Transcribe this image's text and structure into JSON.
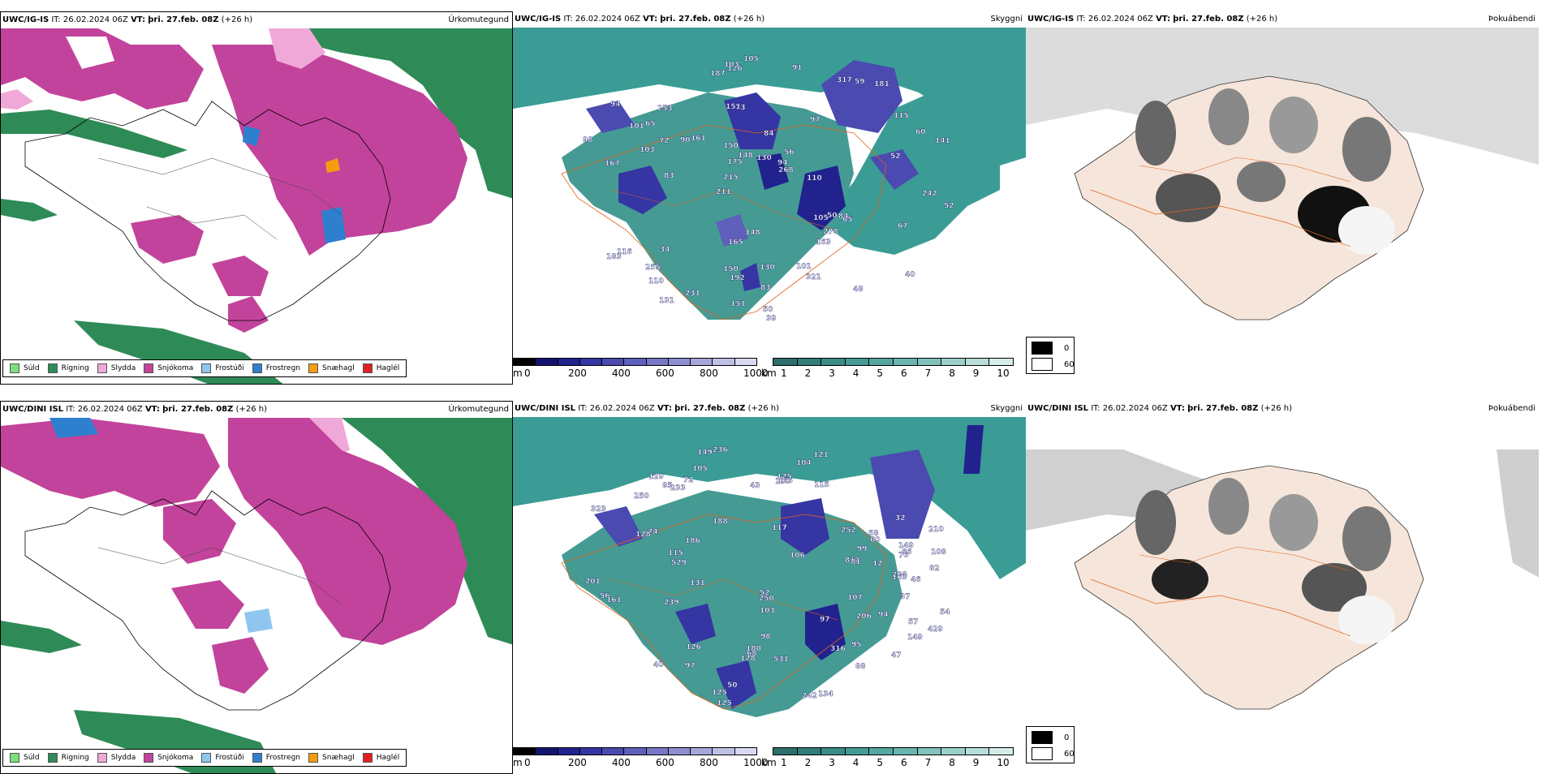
{
  "colors": {
    "sudd": "#7be07b",
    "rigning": "#2e8b57",
    "slydda": "#f0a8d8",
    "snjokoma": "#c2439b",
    "frostudi": "#8ec6f0",
    "frostregn": "#2f7fcf",
    "snaehagl": "#f39c12",
    "haglel": "#e02020",
    "sea_teal": "#3a9c95",
    "land_bg": "#f6e5da",
    "roads": "#e0641b"
  },
  "rows": [
    {
      "model": "UWC/IG-IS",
      "it_label": "IT:",
      "it_value": "26.02.2024 06Z",
      "vt_label": "VT:",
      "vt_value": "þri. 27.feb. 08Z",
      "lead": "(+26 h)"
    },
    {
      "model": "UWC/DINI ISL",
      "it_label": "IT:",
      "it_value": "26.02.2024 06Z",
      "vt_label": "VT:",
      "vt_value": "þri. 27.feb. 08Z",
      "lead": "(+26 h)"
    }
  ],
  "panel_titles": {
    "precip": "Úrkomutegund",
    "cloud": "Skyggni",
    "fog": "Þokuábendi"
  },
  "precip_legend": [
    {
      "label": "Súld",
      "color": "#7be07b"
    },
    {
      "label": "Rigning",
      "color": "#2e8b57"
    },
    {
      "label": "Slydda",
      "color": "#f0a8d8"
    },
    {
      "label": "Snjókoma",
      "color": "#c2439b"
    },
    {
      "label": "Frostúði",
      "color": "#8ec6f0"
    },
    {
      "label": "Frostregn",
      "color": "#2f7fcf"
    },
    {
      "label": "Snæhagl",
      "color": "#f39c12"
    },
    {
      "label": "Haglél",
      "color": "#e02020"
    }
  ],
  "cloud_base_scale": {
    "unit": "m",
    "ticks": [
      "0",
      "200",
      "400",
      "600",
      "800",
      "1000"
    ],
    "colors": [
      "#000000",
      "#13136f",
      "#22228f",
      "#3535a3",
      "#4a4ab0",
      "#5f5fbc",
      "#7777c6",
      "#8e8ed0",
      "#a6a6da",
      "#c0c0e6",
      "#d8d8f0"
    ]
  },
  "visibility_scale": {
    "unit": "km",
    "ticks": [
      "1",
      "2",
      "3",
      "4",
      "5",
      "6",
      "7",
      "8",
      "9",
      "10"
    ],
    "colors": [
      "#2d6e6a",
      "#327d78",
      "#3a8c86",
      "#459b94",
      "#55a8a1",
      "#68b5ae",
      "#80c2bb",
      "#9bd0ca",
      "#b8ded9",
      "#d5ece9"
    ]
  },
  "fog_legend": [
    {
      "label": "0",
      "color": "#000000"
    },
    {
      "label": "60",
      "color": "#ffffff"
    }
  ],
  "cloud_labels": [
    [
      "167",
      "211",
      "97",
      "151",
      "84",
      "116",
      "161",
      "110",
      "73",
      "56",
      "65",
      "94",
      "126",
      "105",
      "60",
      "215",
      "150",
      "175",
      "253",
      "317",
      "34",
      "40",
      "84",
      "39",
      "90",
      "103",
      "163",
      "131",
      "141",
      "94",
      "192",
      "268",
      "183",
      "115",
      "278",
      "321",
      "255",
      "130",
      "181",
      "105",
      "83",
      "98",
      "65",
      "59",
      "91",
      "187",
      "148",
      "165",
      "231",
      "50",
      "72",
      "101",
      "52",
      "150",
      "83",
      "130",
      "110",
      "67",
      "151",
      "52",
      "148",
      "48",
      "50",
      "101",
      "103",
      "242"
    ],
    [
      "47",
      "210",
      "117",
      "105",
      "149",
      "97",
      "74",
      "108",
      "323",
      "208",
      "125",
      "250",
      "72",
      "68",
      "66",
      "56",
      "161",
      "242",
      "818",
      "125",
      "128",
      "104",
      "115",
      "252",
      "239",
      "88",
      "250",
      "57",
      "81",
      "43",
      "131",
      "94",
      "12",
      "100",
      "529",
      "429",
      "206",
      "121",
      "186",
      "60",
      "40",
      "103",
      "166",
      "316",
      "107",
      "149",
      "129",
      "125",
      "236",
      "95",
      "531",
      "85",
      "52",
      "58",
      "128",
      "32",
      "163",
      "126",
      "97",
      "180",
      "99",
      "82",
      "37",
      "149",
      "134",
      "54",
      "46",
      "50",
      "76",
      "201",
      "98",
      "188",
      "106",
      "115",
      "233"
    ]
  ]
}
